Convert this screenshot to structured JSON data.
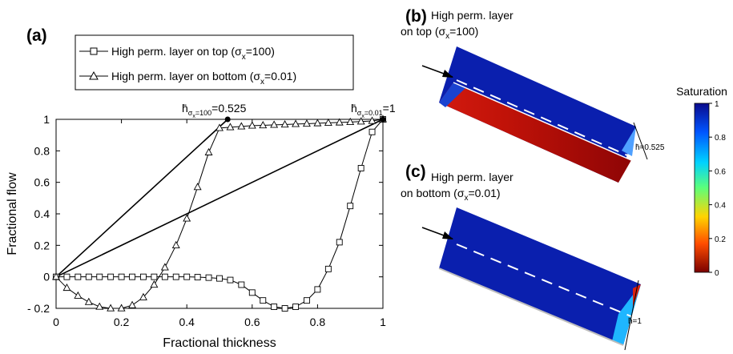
{
  "panel_a_label": "(a)",
  "panel_b_label": "(b)",
  "panel_c_label": "(c)",
  "panel_b_title": [
    "High perm. layer",
    "on top (σ",
    "x",
    "=100)"
  ],
  "panel_c_title": [
    "High perm. layer",
    "on bottom (σ",
    "x",
    "=0.01)"
  ],
  "colorbar": {
    "title": "Saturation",
    "ticks": [
      "1",
      "0.8",
      "0.6",
      "0.4",
      "0.2",
      "0"
    ],
    "colors": [
      "#0a0a8c",
      "#0055ff",
      "#00d2ff",
      "#5cff7a",
      "#ffd400",
      "#ff4d00",
      "#7a0000"
    ]
  },
  "h_label_b": "h̄=0.525",
  "h_label_c": "h̄=1",
  "annotations": {
    "left": [
      "h̄",
      "σ",
      "x",
      "=100",
      "=0.525"
    ],
    "right": [
      "h̄",
      "σ",
      "x",
      "=0.01",
      "=1"
    ]
  },
  "chart_data": {
    "type": "line",
    "xlabel": "Fractional thickness",
    "ylabel": "Fractional flow",
    "xlim": [
      0,
      1
    ],
    "ylim": [
      -0.2,
      1
    ],
    "xticks": [
      0,
      0.2,
      0.4,
      0.6,
      0.8,
      1
    ],
    "yticks": [
      -0.2,
      0,
      0.2,
      0.4,
      0.6,
      0.8,
      1
    ],
    "xtick_labels": [
      "0",
      "0.2",
      "0.4",
      "0.6",
      "0.8",
      "1"
    ],
    "ytick_labels": [
      "- 0.2",
      "0",
      "0.2",
      "0.4",
      "0.6",
      "0.8",
      "1"
    ],
    "legend_placement": "top",
    "series": [
      {
        "name": "High perm. layer on top (σx=100)",
        "marker": "square",
        "x": [
          0,
          0.033,
          0.067,
          0.1,
          0.133,
          0.167,
          0.2,
          0.233,
          0.267,
          0.3,
          0.333,
          0.367,
          0.4,
          0.433,
          0.467,
          0.5,
          0.533,
          0.567,
          0.6,
          0.633,
          0.667,
          0.7,
          0.733,
          0.767,
          0.8,
          0.833,
          0.867,
          0.9,
          0.933,
          0.967,
          1
        ],
        "y": [
          0,
          0,
          0,
          0,
          0,
          0,
          0,
          0,
          0,
          0,
          0,
          0,
          0,
          -0.002,
          -0.005,
          -0.01,
          -0.02,
          -0.05,
          -0.1,
          -0.15,
          -0.19,
          -0.2,
          -0.19,
          -0.15,
          -0.08,
          0.05,
          0.22,
          0.45,
          0.69,
          0.92,
          1
        ]
      },
      {
        "name": "High perm. layer on bottom (σx=0.01)",
        "marker": "triangle",
        "x": [
          0,
          0.033,
          0.067,
          0.1,
          0.133,
          0.167,
          0.2,
          0.233,
          0.267,
          0.3,
          0.333,
          0.367,
          0.4,
          0.433,
          0.467,
          0.5,
          0.533,
          0.567,
          0.6,
          0.633,
          0.667,
          0.7,
          0.733,
          0.767,
          0.8,
          0.833,
          0.867,
          0.9,
          0.933,
          0.967,
          1
        ],
        "y": [
          0,
          -0.07,
          -0.12,
          -0.16,
          -0.19,
          -0.2,
          -0.2,
          -0.18,
          -0.13,
          -0.05,
          0.06,
          0.2,
          0.37,
          0.57,
          0.79,
          0.945,
          0.95,
          0.955,
          0.96,
          0.962,
          0.965,
          0.967,
          0.97,
          0.972,
          0.975,
          0.978,
          0.98,
          0.983,
          0.986,
          0.99,
          1
        ]
      }
    ],
    "tangent_lines": [
      {
        "from": [
          0,
          0
        ],
        "to": [
          0.525,
          1
        ]
      },
      {
        "from": [
          0,
          0
        ],
        "to": [
          1,
          1
        ]
      }
    ],
    "highlight_points": [
      [
        0.525,
        1
      ],
      [
        1,
        1
      ]
    ]
  }
}
